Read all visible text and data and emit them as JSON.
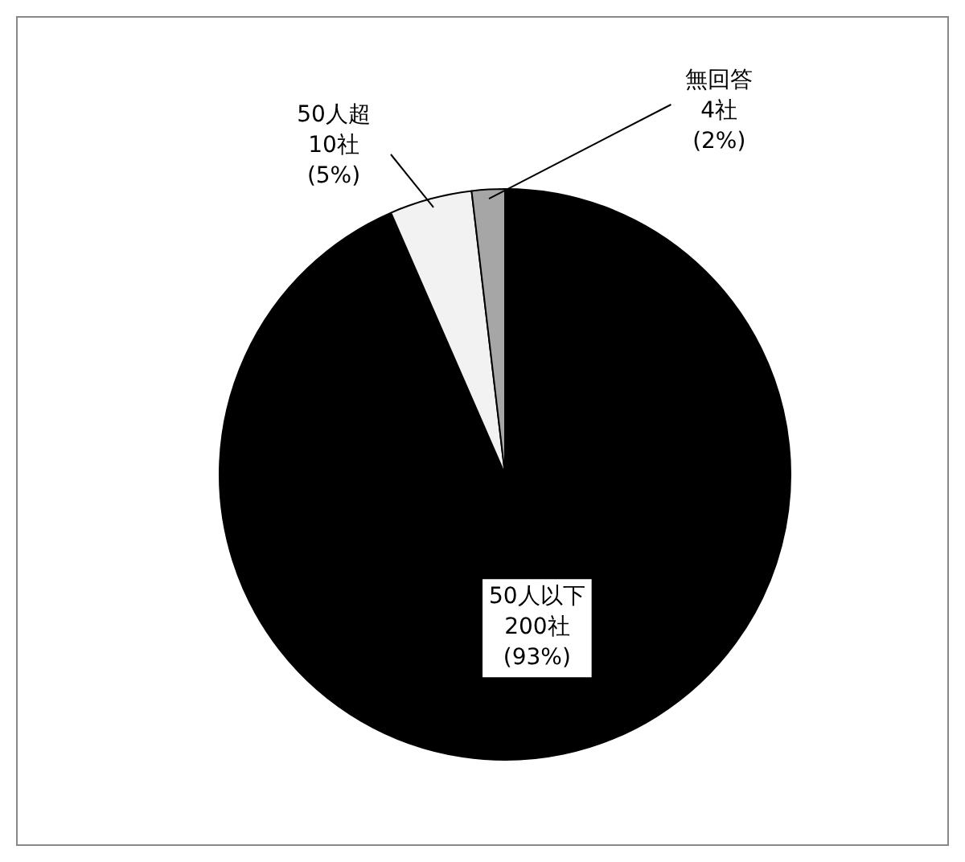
{
  "chart_data": {
    "type": "pie",
    "categories": [
      "50人以下",
      "50人超",
      "無回答"
    ],
    "values": [
      200,
      10,
      4
    ],
    "colors": [
      "#000000",
      "#f2f2f2",
      "#a6a6a6"
    ],
    "value_labels": [
      "200社\n(93%)",
      "10社\n(5%)",
      "4社\n(2%)"
    ],
    "legend": false
  }
}
